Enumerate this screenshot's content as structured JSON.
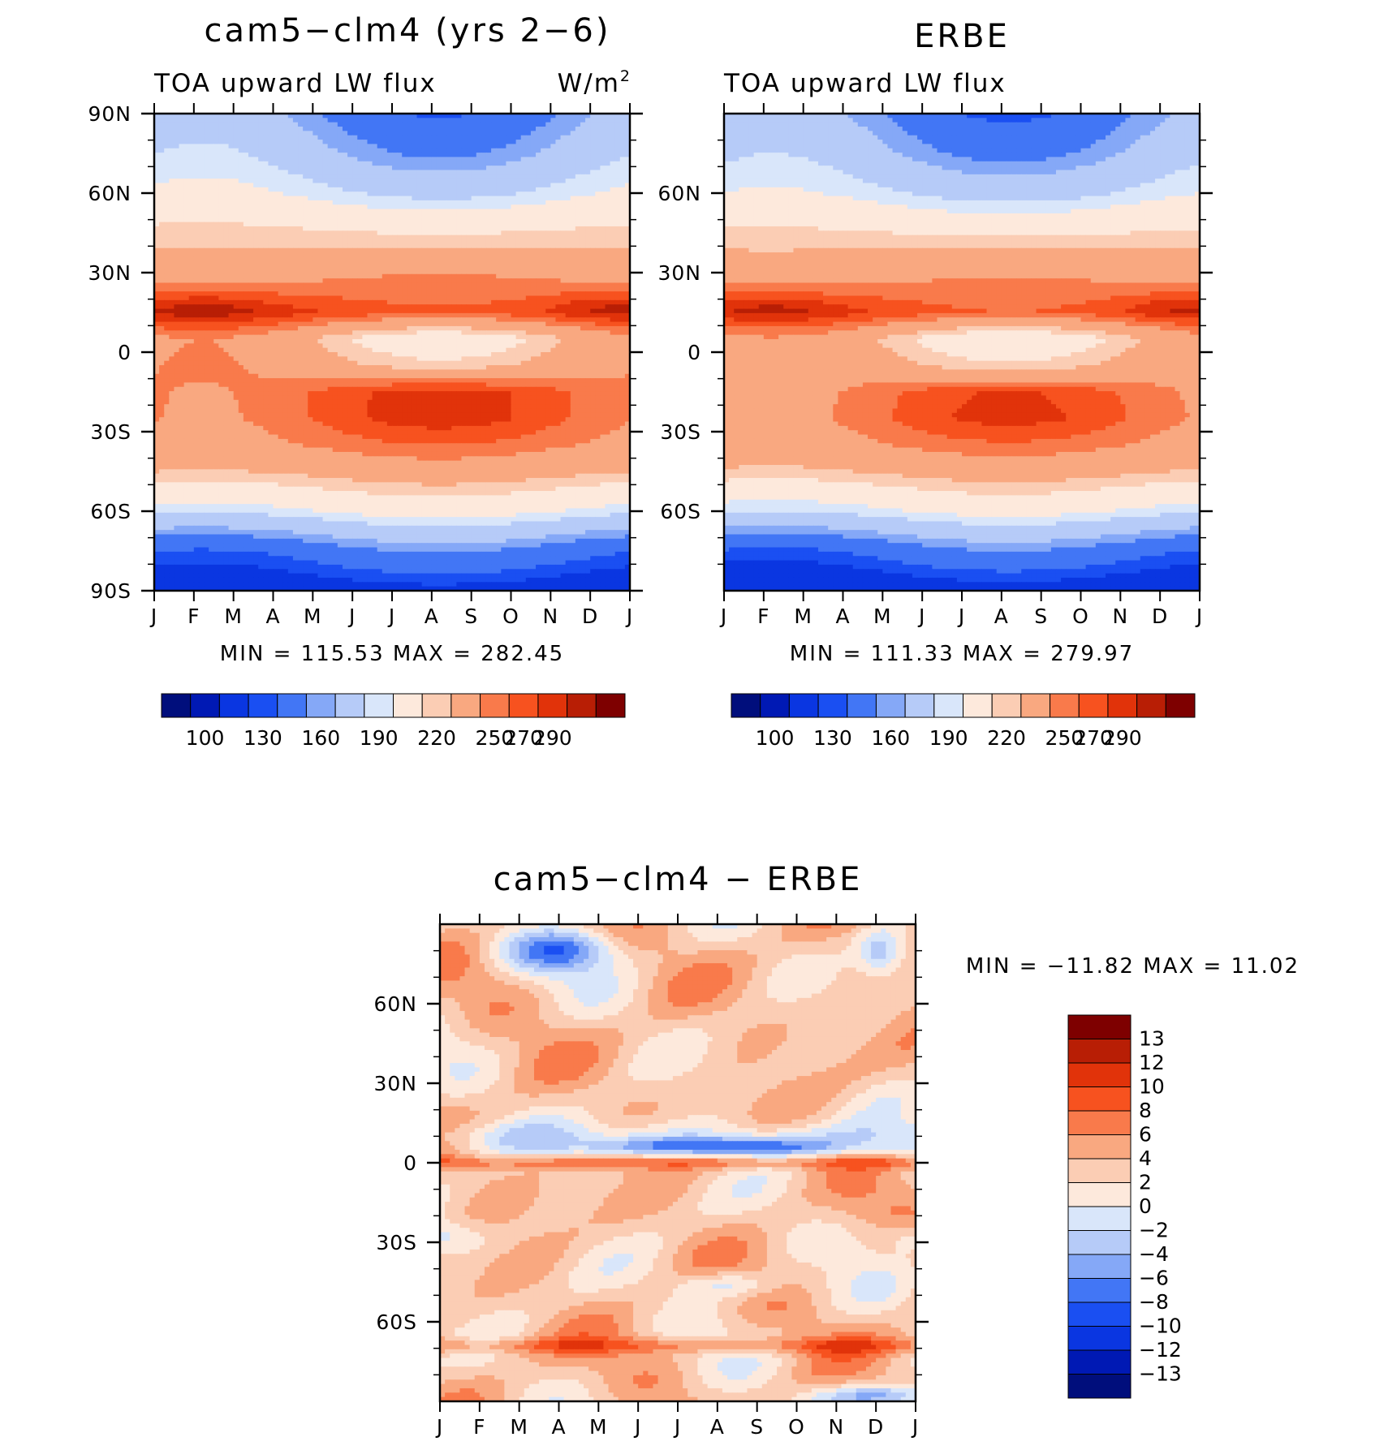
{
  "colors": {
    "abs_scale": [
      "#000e7c",
      "#0019b4",
      "#0a36e1",
      "#1a4ff2",
      "#4276f5",
      "#85a8f7",
      "#b6cbf8",
      "#d9e6fa",
      "#fde9dc",
      "#fbcdb4",
      "#f9a880",
      "#f97a4b",
      "#f7521f",
      "#e1330a",
      "#b81e05",
      "#7e0000"
    ],
    "diff_scale": [
      "#7e0000",
      "#b81e05",
      "#e1330a",
      "#f7521f",
      "#f97a4b",
      "#f9a880",
      "#fbcdb4",
      "#fde9dc",
      "#d9e6fa",
      "#b6cbf8",
      "#85a8f7",
      "#4276f5",
      "#1a4ff2",
      "#0a36e1",
      "#0019b4",
      "#000e7c"
    ]
  },
  "chart_data": [
    {
      "type": "heatmap",
      "title": "cam5−clm4 (yrs 2−6)",
      "subtitle_left": "TOA upward LW flux",
      "units": "W/m",
      "units_sup": "2",
      "x_ticks": [
        "J",
        "F",
        "M",
        "A",
        "M",
        "J",
        "J",
        "A",
        "S",
        "O",
        "N",
        "D",
        "J"
      ],
      "y_ticks": [
        "90N",
        "60N",
        "30N",
        "0",
        "30S",
        "60S",
        "90S"
      ],
      "y_values": [
        90,
        60,
        30,
        0,
        -30,
        -60,
        -90
      ],
      "min_max_label": "MIN = 115.53 MAX = 282.45",
      "min": 115.53,
      "max": 282.45,
      "colorbar_labels": [
        "100",
        "130",
        "160",
        "190",
        "220",
        "250",
        "270",
        "290"
      ],
      "colorbar_levels": [
        100,
        110,
        130,
        140,
        160,
        170,
        190,
        200,
        220,
        230,
        250,
        260,
        270,
        280,
        290
      ],
      "lat_profile": [
        [
          90,
          160
        ],
        [
          75,
          175
        ],
        [
          60,
          195
        ],
        [
          45,
          222
        ],
        [
          30,
          245
        ],
        [
          15,
          270
        ],
        [
          5,
          228
        ],
        [
          -5,
          238
        ],
        [
          -15,
          262
        ],
        [
          -25,
          262
        ],
        [
          -35,
          252
        ],
        [
          -45,
          235
        ],
        [
          -60,
          200
        ],
        [
          -75,
          150
        ],
        [
          -90,
          118
        ]
      ],
      "amplitude_profile": [
        [
          90,
          -22
        ],
        [
          75,
          -18
        ],
        [
          60,
          -10
        ],
        [
          45,
          -3
        ],
        [
          30,
          5
        ],
        [
          15,
          -8
        ],
        [
          5,
          -22
        ],
        [
          -5,
          -14
        ],
        [
          -15,
          13
        ],
        [
          -25,
          14
        ],
        [
          -35,
          8
        ],
        [
          -45,
          6
        ],
        [
          -60,
          8
        ],
        [
          -75,
          12
        ],
        [
          -90,
          6
        ]
      ]
    },
    {
      "type": "heatmap",
      "title": "ERBE",
      "subtitle_left": "TOA upward LW flux",
      "x_ticks": [
        "J",
        "F",
        "M",
        "A",
        "M",
        "J",
        "J",
        "A",
        "S",
        "O",
        "N",
        "D",
        "J"
      ],
      "y_ticks": [
        "60N",
        "30N",
        "0",
        "30S",
        "60S"
      ],
      "y_values": [
        60,
        30,
        0,
        -30,
        -60
      ],
      "min_max_label": "MIN = 111.33 MAX = 279.97",
      "min": 111.33,
      "max": 279.97,
      "colorbar_labels": [
        "100",
        "130",
        "160",
        "190",
        "220",
        "250",
        "270",
        "290"
      ],
      "lat_profile": [
        [
          90,
          158
        ],
        [
          75,
          172
        ],
        [
          60,
          192
        ],
        [
          45,
          220
        ],
        [
          30,
          244
        ],
        [
          15,
          268
        ],
        [
          5,
          226
        ],
        [
          -5,
          236
        ],
        [
          -15,
          258
        ],
        [
          -25,
          260
        ],
        [
          -35,
          250
        ],
        [
          -45,
          233
        ],
        [
          -60,
          198
        ],
        [
          -75,
          148
        ],
        [
          -90,
          115
        ]
      ],
      "amplitude_profile": [
        [
          90,
          -22
        ],
        [
          75,
          -18
        ],
        [
          60,
          -10
        ],
        [
          45,
          -3
        ],
        [
          30,
          5
        ],
        [
          15,
          -8
        ],
        [
          5,
          -22
        ],
        [
          -5,
          -14
        ],
        [
          -15,
          13
        ],
        [
          -25,
          14
        ],
        [
          -35,
          8
        ],
        [
          -45,
          6
        ],
        [
          -60,
          8
        ],
        [
          -75,
          12
        ],
        [
          -90,
          6
        ]
      ]
    },
    {
      "type": "heatmap",
      "title": "cam5−clm4 − ERBE",
      "x_ticks": [
        "J",
        "F",
        "M",
        "A",
        "M",
        "J",
        "J",
        "A",
        "S",
        "O",
        "N",
        "D",
        "J"
      ],
      "y_ticks": [
        "60N",
        "30N",
        "0",
        "30S",
        "60S"
      ],
      "y_values": [
        60,
        30,
        0,
        -30,
        -60
      ],
      "min_max_label": "MIN = −11.82 MAX =   11.02",
      "min": -11.82,
      "max": 11.02,
      "colorbar_labels": [
        "13",
        "12",
        "10",
        "8",
        "6",
        "4",
        "2",
        "0",
        "−2",
        "−4",
        "−6",
        "−8",
        "−10",
        "−12",
        "−13"
      ],
      "colorbar_levels": [
        13,
        12,
        10,
        8,
        6,
        4,
        2,
        0,
        -2,
        -4,
        -6,
        -8,
        -10,
        -12,
        -13
      ]
    }
  ]
}
